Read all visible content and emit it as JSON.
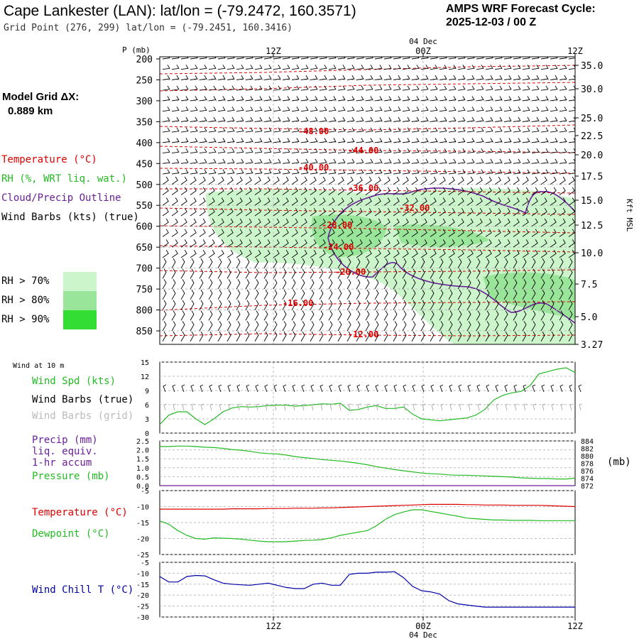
{
  "header": {
    "title": "Cape Lankester (LAN):  lat/lon = (-79.2472, 160.3571)",
    "grid_point": "Grid Point (276, 299) lat/lon = (-79.2451, 160.3416)",
    "cycle_line1": "AMPS WRF Forecast Cycle:",
    "cycle_line2": "2025-12-03 / 00  Z"
  },
  "side": {
    "model_grid_label": "Model Grid ΔX:",
    "model_grid_value": "0.889 km",
    "legend_temperature": "Temperature (°C)",
    "legend_rh": "RH (%, WRT liq. wat.)",
    "legend_cloud": "Cloud/Precip Outline",
    "legend_wind": "Wind Barbs (kts) (true)",
    "rh_70": "RH > 70%",
    "rh_80": "RH > 80%",
    "rh_90": "RH > 90%",
    "right_axis_title": "Kft MSL",
    "mb_unit": "(mb)"
  },
  "colors": {
    "temperature": "#dd0000",
    "rh": "#22bb22",
    "cloud": "#6a1f9a",
    "wind_grid": "#aaaaaa",
    "windchill": "#0000aa",
    "rh70": "#ccf5cc",
    "rh80": "#99e599",
    "rh90": "#33dd33"
  },
  "chart_data": [
    {
      "type": "line",
      "title": "",
      "time_ticks_top": [
        "12Z",
        "00Z",
        "12Z"
      ],
      "date_label": "04 Dec",
      "ylabel": "P (mb)",
      "pressure_ticks": [
        200,
        250,
        300,
        350,
        400,
        450,
        500,
        550,
        600,
        650,
        700,
        750,
        800,
        850
      ],
      "ylim": [
        870,
        200
      ],
      "height_ticks_kft": [
        "35.0",
        "30.0",
        "25.0",
        "22.5",
        "20.0",
        "17.5",
        "15.0",
        "12.5",
        "10.0",
        "7.5",
        "5.0",
        "3.27"
      ],
      "temperature_contour_labels": [
        "-48.00",
        "-44.00",
        "-40.00",
        "-36.00",
        "-32.00",
        "-28.00",
        "-24.00",
        "-20.00",
        "-16.00",
        "-12.00"
      ],
      "legend": [
        "Temperature (°C)",
        "RH (%, WRT liq. wat.)",
        "Cloud/Precip Outline",
        "Wind Barbs (kts) (true)"
      ]
    },
    {
      "type": "line",
      "panel_label": "Wind at 10 m",
      "ylim": [
        0,
        15
      ],
      "yticks": [
        0,
        3,
        6,
        9,
        12,
        15
      ],
      "series": [
        {
          "name": "Wind Spd (kts)",
          "color": "#22bb22",
          "values": [
            1.8,
            3.8,
            4.5,
            4.5,
            3.0,
            1.8,
            3.0,
            4.5,
            5.3,
            5.6,
            5.5,
            5.6,
            5.8,
            5.9,
            5.9,
            5.7,
            5.8,
            6.0,
            6.2,
            6.1,
            6.3,
            4.8,
            5.0,
            5.5,
            5.8,
            5.2,
            5.2,
            5.5,
            4.0,
            3.0,
            2.8,
            2.6,
            2.8,
            3.0,
            3.2,
            3.8,
            5.0,
            7.0,
            8.0,
            8.5,
            8.8,
            10.0,
            12.5,
            13.0,
            13.5,
            13.8,
            12.8
          ]
        },
        {
          "name": "Wind Barbs (true)",
          "color": "#000000"
        },
        {
          "name": "Wind Barbs (grid)",
          "color": "#aaaaaa"
        }
      ]
    },
    {
      "type": "line",
      "ylim": [
        0,
        2.5
      ],
      "yticks": [
        0.0,
        0.5,
        1.0,
        1.5,
        2.0,
        2.5
      ],
      "y2ticks": [
        872,
        874,
        876,
        878,
        880,
        882,
        884
      ],
      "series": [
        {
          "name": "Precip (mm) liq. equiv. 1-hr accum",
          "color": "#6a1f9a",
          "values": [
            0,
            0,
            0,
            0,
            0,
            0,
            0,
            0,
            0,
            0,
            0,
            0,
            0,
            0,
            0,
            0,
            0,
            0,
            0,
            0,
            0,
            0,
            0,
            0,
            0,
            0,
            0,
            0,
            0,
            0,
            0,
            0,
            0,
            0,
            0,
            0,
            0,
            0,
            0,
            0,
            0,
            0,
            0,
            0,
            0,
            0,
            0
          ]
        },
        {
          "name": "Pressure (mb)",
          "color": "#22bb22",
          "values": [
            882.5,
            882.5,
            882.6,
            882.6,
            882.5,
            882.3,
            882.2,
            882.0,
            881.7,
            881.5,
            881.2,
            880.8,
            880.6,
            880.5,
            880.2,
            879.8,
            879.5,
            879.3,
            879.0,
            878.8,
            878.6,
            878.3,
            878.0,
            877.6,
            877.1,
            876.7,
            876.3,
            876.0,
            875.7,
            875.4,
            875.2,
            875.1,
            874.9,
            874.8,
            874.8,
            874.7,
            874.6,
            874.5,
            874.4,
            874.3,
            874.1,
            874.0,
            873.9,
            873.9,
            873.8,
            873.8,
            874.0
          ]
        }
      ]
    },
    {
      "type": "line",
      "ylim": [
        -25,
        -5
      ],
      "yticks": [
        -5,
        -10,
        -15,
        -20,
        -25
      ],
      "series": [
        {
          "name": "Temperature (°C)",
          "color": "#dd0000",
          "values": [
            -10.8,
            -10.8,
            -10.8,
            -10.8,
            -10.8,
            -10.8,
            -10.8,
            -10.8,
            -10.7,
            -10.7,
            -10.7,
            -10.7,
            -10.6,
            -10.6,
            -10.6,
            -10.5,
            -10.5,
            -10.5,
            -10.4,
            -10.4,
            -10.3,
            -10.2,
            -10.1,
            -10.0,
            -9.9,
            -9.8,
            -9.7,
            -9.6,
            -9.5,
            -9.4,
            -9.3,
            -9.3,
            -9.3,
            -9.3,
            -9.4,
            -9.4,
            -9.5,
            -9.5,
            -9.5,
            -9.6,
            -9.6,
            -9.6,
            -9.6,
            -9.7,
            -9.8,
            -9.9,
            -10.0
          ]
        },
        {
          "name": "Dewpoint (°C)",
          "color": "#22bb22",
          "values": [
            -14.5,
            -15.5,
            -17.5,
            -19.0,
            -20.0,
            -20.2,
            -19.8,
            -19.9,
            -20.0,
            -20.2,
            -20.5,
            -20.8,
            -21.0,
            -21.0,
            -21.0,
            -20.8,
            -20.6,
            -20.5,
            -20.3,
            -19.8,
            -19.0,
            -18.5,
            -18.0,
            -17.5,
            -16.0,
            -14.0,
            -12.5,
            -11.7,
            -11.0,
            -11.0,
            -11.5,
            -12.0,
            -12.5,
            -13.0,
            -13.6,
            -13.8,
            -14.0,
            -14.2,
            -14.2,
            -14.3,
            -14.3,
            -14.3,
            -14.4,
            -14.4,
            -14.4,
            -14.4,
            -14.4
          ]
        }
      ]
    },
    {
      "type": "line",
      "ylim": [
        -30,
        -5
      ],
      "yticks": [
        -5,
        -10,
        -15,
        -20,
        -25,
        -30
      ],
      "series": [
        {
          "name": "Wind Chill T (°C)",
          "color": "#0000aa",
          "values": [
            -11.5,
            -14.0,
            -14.0,
            -11.5,
            -11.0,
            -11.2,
            -13.0,
            -14.5,
            -15.0,
            -15.3,
            -15.5,
            -15.0,
            -14.5,
            -15.5,
            -16.5,
            -17.0,
            -17.0,
            -15.0,
            -14.5,
            -15.5,
            -15.5,
            -10.5,
            -10.0,
            -10.0,
            -9.5,
            -9.5,
            -9.3,
            -12.0,
            -16.0,
            -18.0,
            -18.5,
            -19.5,
            -22.5,
            -24.0,
            -24.5,
            -25.0,
            -25.5,
            -25.5,
            -25.5,
            -25.5,
            -25.5,
            -25.5,
            -25.5,
            -25.5,
            -25.5,
            -25.5,
            -25.5
          ]
        }
      ]
    }
  ],
  "bottom_axis": {
    "ticks": [
      "12Z",
      "00Z",
      "12Z"
    ],
    "date_label": "04 Dec"
  },
  "lower_legends": {
    "wind_spd": "Wind Spd (kts)",
    "barbs_true": "Wind Barbs (true)",
    "barbs_grid": "Wind Barbs (grid)",
    "precip_1": "Precip (mm)",
    "precip_2": "liq. equiv.",
    "precip_3": "1-hr accum",
    "pressure": "Pressure (mb)",
    "temperature": "Temperature (°C)",
    "dewpoint": "Dewpoint (°C)",
    "windchill": "Wind Chill T (°C)"
  }
}
